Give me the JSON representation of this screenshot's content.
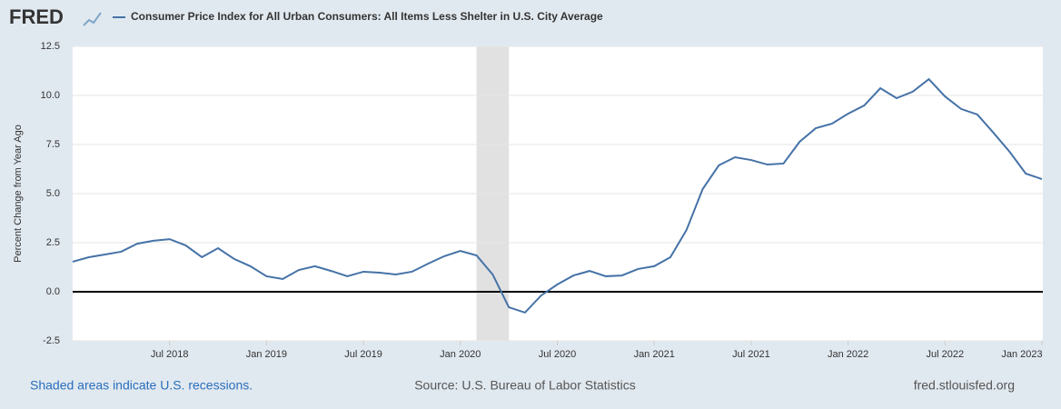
{
  "brand": "FRED",
  "chart_data": {
    "type": "line",
    "y_label": "Percent Change from Year Ago",
    "x": [
      "2018-01",
      "2018-02",
      "2018-03",
      "2018-04",
      "2018-05",
      "2018-06",
      "2018-07",
      "2018-08",
      "2018-09",
      "2018-10",
      "2018-11",
      "2018-12",
      "2019-01",
      "2019-02",
      "2019-03",
      "2019-04",
      "2019-05",
      "2019-06",
      "2019-07",
      "2019-08",
      "2019-09",
      "2019-10",
      "2019-11",
      "2019-12",
      "2020-01",
      "2020-02",
      "2020-03",
      "2020-04",
      "2020-05",
      "2020-06",
      "2020-07",
      "2020-08",
      "2020-09",
      "2020-10",
      "2020-11",
      "2020-12",
      "2021-01",
      "2021-02",
      "2021-03",
      "2021-04",
      "2021-05",
      "2021-06",
      "2021-07",
      "2021-08",
      "2021-09",
      "2021-10",
      "2021-11",
      "2021-12",
      "2022-01",
      "2022-02",
      "2022-03",
      "2022-04",
      "2022-05",
      "2022-06",
      "2022-07",
      "2022-08",
      "2022-09",
      "2022-10",
      "2022-11",
      "2022-12",
      "2023-01"
    ],
    "series": [
      {
        "name": "Consumer Price Index for All Urban Consumers: All Items Less Shelter in U.S. City Average",
        "color": "#4572a7",
        "values": [
          1.53,
          1.76,
          1.9,
          2.04,
          2.45,
          2.6,
          2.68,
          2.36,
          1.76,
          2.22,
          1.67,
          1.3,
          0.79,
          0.65,
          1.11,
          1.3,
          1.06,
          0.79,
          1.02,
          0.97,
          0.88,
          1.02,
          1.43,
          1.81,
          2.08,
          1.85,
          0.88,
          -0.79,
          -1.06,
          -0.19,
          0.37,
          0.83,
          1.06,
          0.79,
          0.83,
          1.16,
          1.3,
          1.76,
          3.15,
          5.23,
          6.44,
          6.85,
          6.71,
          6.48,
          6.53,
          7.64,
          8.33,
          8.56,
          9.07,
          9.49,
          10.37,
          9.86,
          10.19,
          10.83,
          9.95,
          9.31,
          9.03,
          8.1,
          7.13,
          6.02,
          5.74
        ]
      }
    ],
    "xlim": [
      "2018-01",
      "2023-01"
    ],
    "xticks": [
      {
        "value": "2018-07",
        "label": "Jul 2018"
      },
      {
        "value": "2019-01",
        "label": "Jan 2019"
      },
      {
        "value": "2019-07",
        "label": "Jul 2019"
      },
      {
        "value": "2020-01",
        "label": "Jan 2020"
      },
      {
        "value": "2020-07",
        "label": "Jul 2020"
      },
      {
        "value": "2021-01",
        "label": "Jan 2021"
      },
      {
        "value": "2021-07",
        "label": "Jul 2021"
      },
      {
        "value": "2022-01",
        "label": "Jan 2022"
      },
      {
        "value": "2022-07",
        "label": "Jul 2022"
      },
      {
        "value": "2023-01",
        "label": "Jan 2023"
      }
    ],
    "ylim": [
      -2.5,
      12.5
    ],
    "yticks": [
      -2.5,
      {
        "value": 0,
        "label": "0.0"
      },
      2.5,
      {
        "value": 5,
        "label": "5.0"
      },
      7.5,
      {
        "value": 10,
        "label": "10.0"
      },
      12.5
    ],
    "grid": true,
    "recessions": [
      {
        "start": "2020-02",
        "end": "2020-04"
      }
    ],
    "recession_color": "#e1e1e1",
    "notes": [
      "Shaded areas indicate U.S. recessions.",
      "Source: U.S. Bureau of Labor Statistics",
      "fred.stlouisfed.org"
    ]
  }
}
